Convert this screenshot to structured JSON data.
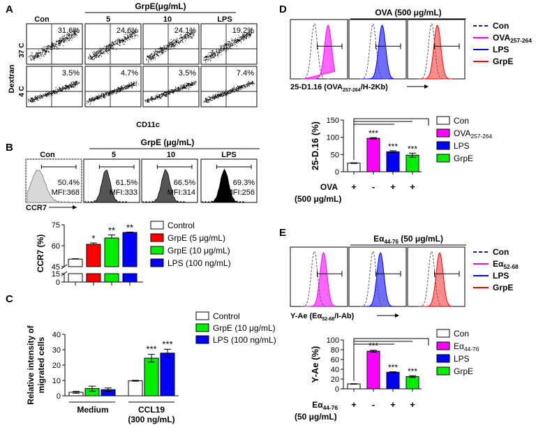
{
  "panelA": {
    "letter": "A",
    "grpe_header": "GrpE(μg/mL)",
    "columns": [
      "Con",
      "5",
      "10",
      "LPS"
    ],
    "row_labels": [
      "37 C",
      "4 C"
    ],
    "y_axis": "Dextran",
    "x_axis": "CD11c",
    "pct_37C": [
      "31.6%",
      "24.6%",
      "24.1%",
      "19.2%"
    ],
    "pct_4C": [
      "3.5%",
      "4.7%",
      "3.5%",
      "7.4%"
    ]
  },
  "panelB": {
    "letter": "B",
    "grpe_header": "GrpE (μg/mL)",
    "columns": [
      "Con",
      "5",
      "10",
      "LPS"
    ],
    "pct": [
      "50.4%",
      "61.5%",
      "66.5%",
      "69.3%"
    ],
    "mfi": [
      "MFI:368",
      "MFI:333",
      "MFI:314",
      "MFI:256"
    ],
    "x_axis": "CCR7"
  },
  "panelD": {
    "letter": "D",
    "header": "OVA (500 μg/mL)",
    "x_axis": "25-D1.16 (OVA257-264/H-2Kb)",
    "legend": [
      "Con",
      "OVA257-264",
      "LPS",
      "GrpE"
    ],
    "colors": [
      "#1a1a8c",
      "#ff00ff",
      "#0000ff",
      "#ff0000"
    ]
  },
  "panelE": {
    "letter": "E",
    "header": "Eα44-76 (50 μg/mL)",
    "x_axis": "Y-Ae (Eα52-68/I-Ab)",
    "legend": [
      "Con",
      "Eα52-68",
      "LPS",
      "GrpE"
    ],
    "colors": [
      "#1a1a8c",
      "#ff00ff",
      "#0000ff",
      "#ff0000"
    ]
  },
  "chart_data": [
    {
      "id": "ccr7",
      "type": "bar",
      "title": "",
      "ylabel": "CCR7 (%)",
      "ylim": [
        0,
        75
      ],
      "axis_break": [
        15,
        45
      ],
      "yticks": [
        "0",
        "15",
        "45",
        "60",
        "75"
      ],
      "categories": [
        "Control",
        "GrpE (5 μg/mL)",
        "GrpE (10 μg/mL)",
        "LPS (100 ng/mL)"
      ],
      "legend": [
        "Control",
        "GrpE (5 μg/mL)",
        "GrpE (10 μg/mL)",
        "LPS (100 ng/mL)"
      ],
      "colors": [
        "#ffffff",
        "#ff0000",
        "#00ee00",
        "#0000ff"
      ],
      "values": [
        50.4,
        61.0,
        65.5,
        69.5
      ],
      "errors": [
        0.3,
        1.0,
        2.2,
        0.3
      ],
      "significance": [
        "",
        "*",
        "**",
        "**"
      ]
    },
    {
      "id": "migration",
      "type": "bar",
      "ylabel": "Relative intensity of migrated cells",
      "ylim": [
        0,
        40
      ],
      "yticks": [
        "0",
        "10",
        "20",
        "30",
        "40"
      ],
      "groups": [
        "Medium",
        "CCL19"
      ],
      "group_sublabel": "(300 ng/mL)",
      "legend": [
        "Control",
        "GrpE (10 μg/mL)",
        "LPS (100 ng/mL)"
      ],
      "colors": [
        "#ffffff",
        "#00ee00",
        "#0000ff"
      ],
      "series": [
        {
          "name": "Control",
          "values": [
            2.3,
            9.8
          ],
          "errors": [
            0.6,
            0.3
          ]
        },
        {
          "name": "GrpE (10 μg/mL)",
          "values": [
            4.7,
            24.5
          ],
          "errors": [
            1.6,
            2.5
          ]
        },
        {
          "name": "LPS (100 ng/mL)",
          "values": [
            4.0,
            27.8
          ],
          "errors": [
            1.1,
            2.5
          ]
        }
      ],
      "significance": [
        [
          "",
          "",
          ""
        ],
        [
          "",
          "***",
          "***"
        ]
      ]
    },
    {
      "id": "d116",
      "type": "bar",
      "ylabel": "25-D.16 (%)",
      "ylim": [
        0,
        150
      ],
      "yticks": [
        "0",
        "50",
        "100",
        "150"
      ],
      "categories": [
        "Con",
        "OVA257-264",
        "LPS",
        "GrpE"
      ],
      "legend": [
        "Con",
        "OVA257-264",
        "LPS",
        "GrpE"
      ],
      "colors": [
        "#ffffff",
        "#ff00ff",
        "#0000ff",
        "#00ee00"
      ],
      "values": [
        25,
        97,
        58,
        48
      ],
      "errors": [
        1,
        2,
        3,
        6
      ],
      "significance": [
        "",
        "***",
        "***",
        "***"
      ],
      "treatment_label": "OVA",
      "treatment_conc": "(500 μg/mL)",
      "treatment": [
        "+",
        "-",
        "+",
        "+"
      ]
    },
    {
      "id": "yae",
      "type": "bar",
      "ylabel": "Y-Ae (%)",
      "ylim": [
        0,
        100
      ],
      "yticks": [
        "0",
        "20",
        "40",
        "60",
        "80",
        "100"
      ],
      "categories": [
        "Con",
        "Eα44-76",
        "LPS",
        "GrpE"
      ],
      "legend": [
        "Con",
        "Eα44-76",
        "LPS",
        "GrpE"
      ],
      "colors": [
        "#ffffff",
        "#ff00ff",
        "#0000ff",
        "#00ee00"
      ],
      "values": [
        10,
        77,
        34,
        25
      ],
      "errors": [
        0.5,
        2,
        1,
        2
      ],
      "significance": [
        "",
        "***",
        "***",
        "***"
      ],
      "treatment_label": "Eα44-76",
      "treatment_conc": "(50 μg/mL)",
      "treatment": [
        "+",
        "-",
        "+",
        "+"
      ]
    }
  ]
}
